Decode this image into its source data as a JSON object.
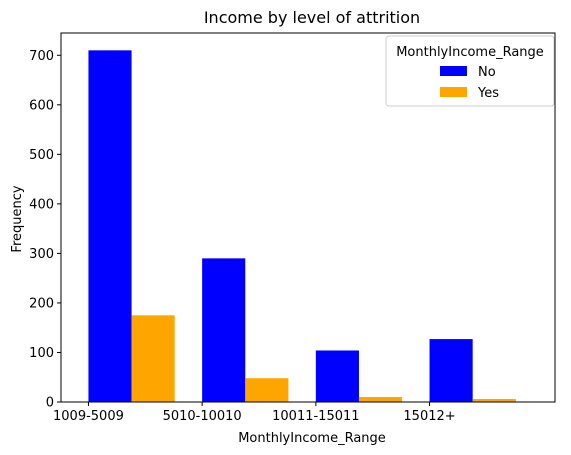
{
  "chart_data": {
    "type": "bar",
    "title": "Income by level of attrition",
    "xlabel": "MonthlyIncome_Range",
    "ylabel": "Frequency",
    "categories": [
      "1009-5009",
      "5010-10010",
      "10011-15011",
      "15012+"
    ],
    "series": [
      {
        "name": "No",
        "color": "#0000ff",
        "values": [
          710,
          290,
          104,
          127
        ]
      },
      {
        "name": "Yes",
        "color": "#ffa500",
        "values": [
          175,
          48,
          10,
          6
        ]
      }
    ],
    "ylim": [
      0,
      745
    ],
    "yticks": [
      0,
      100,
      200,
      300,
      400,
      500,
      600,
      700
    ],
    "grid": false,
    "legend": {
      "title": "MonthlyIncome_Range",
      "placement": "top-right"
    }
  }
}
